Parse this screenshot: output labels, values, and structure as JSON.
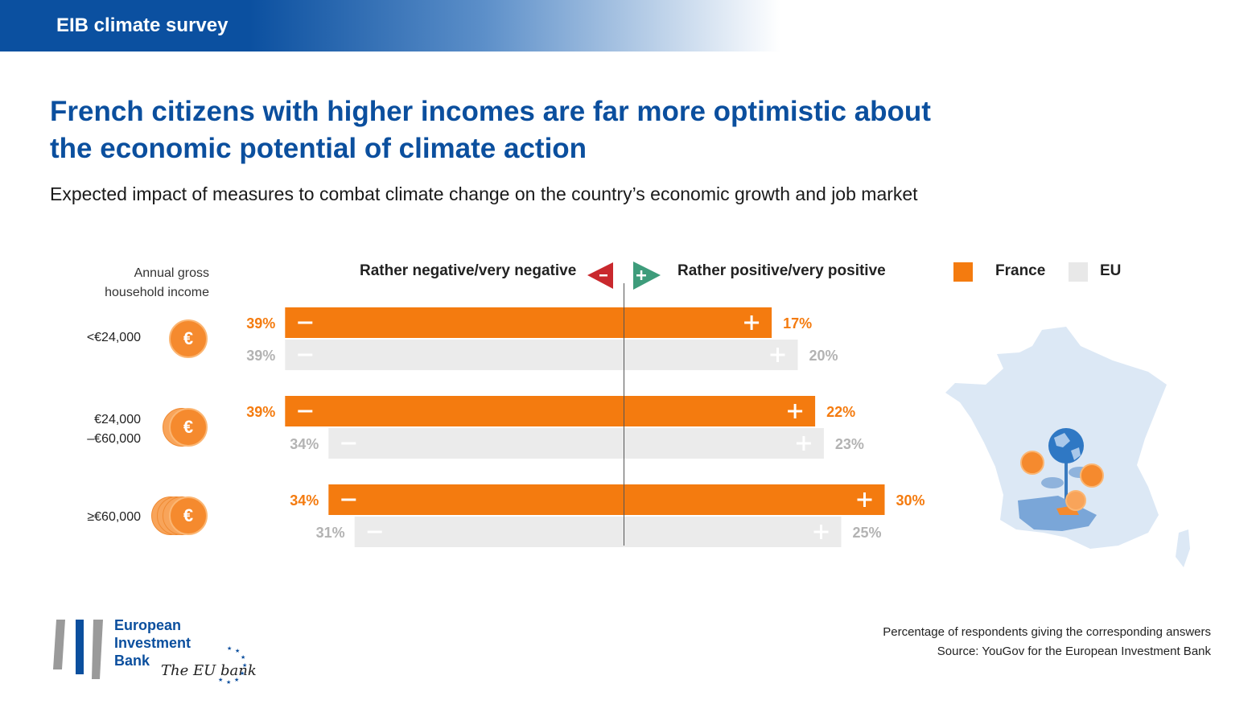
{
  "header": {
    "title": "EIB climate survey"
  },
  "headline": {
    "line1": "French citizens with higher incomes are far more optimistic about",
    "line2": "the economic potential of climate action"
  },
  "subtitle": "Expected impact of measures to combat climate change on the country’s economic growth and job market",
  "income_header": {
    "line1": "Annual gross",
    "line2": "household income"
  },
  "income_groups": [
    {
      "label_line1": "<€24,000",
      "label_line2": "",
      "coin_count": 1
    },
    {
      "label_line1": "€24,000",
      "label_line2": "–€60,000",
      "coin_count": 2
    },
    {
      "label_line1": "≥€60,000",
      "label_line2": "",
      "coin_count": 4
    }
  ],
  "coin_symbol": "€",
  "negative_label": "Rather negative/very negative",
  "positive_label": "Rather positive/very positive",
  "legend": [
    {
      "name": "France",
      "color": "#f47b0f"
    },
    {
      "name": "EU",
      "color": "#e8e8e8"
    }
  ],
  "colors": {
    "france": "#f47b0f",
    "eu": "#ebebeb",
    "eu_text": "#b3b3b3",
    "negative_arrow": "#c9282d",
    "positive_arrow": "#3e9c7b",
    "brand_blue": "#0b4f9e"
  },
  "chart_data": {
    "type": "bar",
    "orientation": "horizontal-diverging",
    "title": "Expected impact of measures to combat climate change on the country’s economic growth and job market",
    "categories": [
      "<€24,000",
      "€24,000–€60,000",
      "≥€60,000"
    ],
    "series": [
      {
        "name": "France",
        "negative": [
          39,
          39,
          34
        ],
        "positive": [
          17,
          22,
          30
        ]
      },
      {
        "name": "EU",
        "negative": [
          39,
          34,
          31
        ],
        "positive": [
          20,
          23,
          25
        ]
      }
    ],
    "unit": "%",
    "xlabel_left": "Rather negative/very negative",
    "xlabel_right": "Rather positive/very positive",
    "ylabel": "Annual gross household income"
  },
  "footnote": {
    "line1": "Percentage of respondents giving the corresponding answers",
    "line2": "Source: YouGov for the European Investment Bank"
  },
  "logo": {
    "line1": "European",
    "line2": "Investment",
    "line3": "Bank",
    "slogan": "The EU bank"
  }
}
